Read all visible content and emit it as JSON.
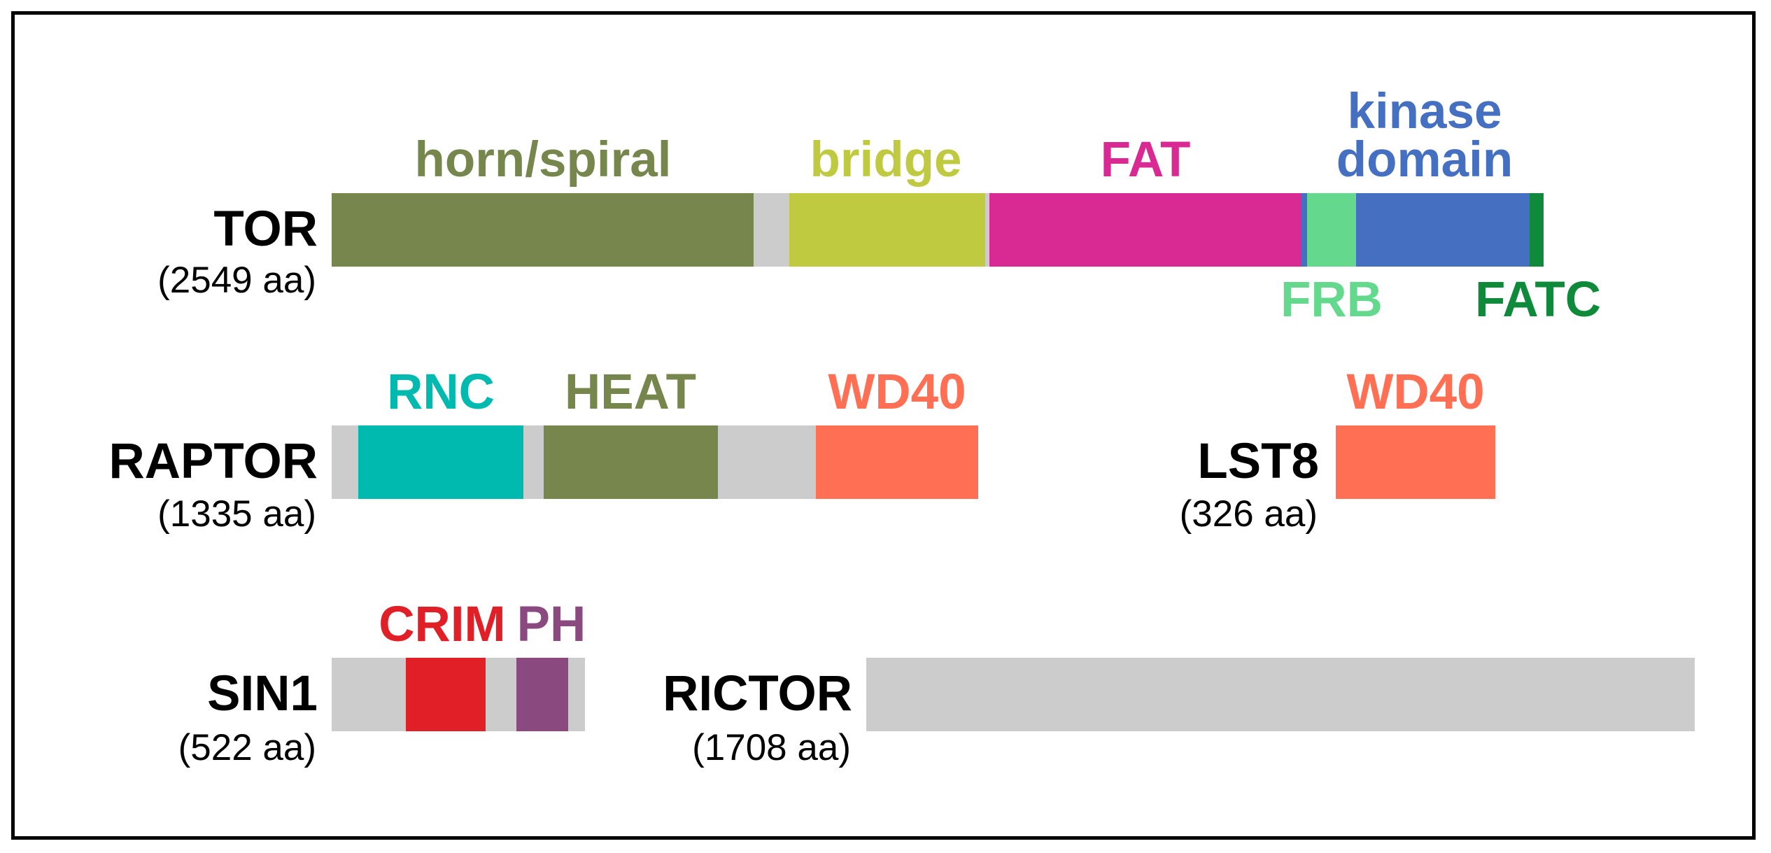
{
  "colors": {
    "backbone": "#CCCCCC",
    "olive": "#77864D",
    "lime": "#BFCA41",
    "magenta": "#D92A93",
    "blue": "#4570C2",
    "mint": "#64D98D",
    "dark_green": "#0E8A3A",
    "teal": "#00BAB0",
    "salmon": "#FF6F53",
    "red": "#E02026",
    "purple": "#8A4A7F"
  },
  "proteins": {
    "tor": {
      "name": "TOR",
      "length": "(2549 aa)",
      "domains": {
        "horn": {
          "label": "horn/spiral",
          "color": "#77864D"
        },
        "bridge": {
          "label": "bridge",
          "color": "#BFCA41"
        },
        "fat": {
          "label": "FAT",
          "color": "#D92A93"
        },
        "frb": {
          "label": "FRB",
          "color": "#64D98D"
        },
        "kinase": {
          "label_line1": "kinase",
          "label_line2": "domain",
          "color": "#4570C2"
        },
        "fatc": {
          "label": "FATC",
          "color": "#0E8A3A"
        }
      }
    },
    "raptor": {
      "name": "RAPTOR",
      "length": "(1335 aa)",
      "domains": {
        "rnc": {
          "label": "RNC",
          "color": "#00BAB0"
        },
        "heat": {
          "label": "HEAT",
          "color": "#77864D"
        },
        "wd40": {
          "label": "WD40",
          "color": "#FF6F53"
        }
      }
    },
    "lst8": {
      "name": "LST8",
      "length": "(326 aa)",
      "domains": {
        "wd40": {
          "label": "WD40",
          "color": "#FF6F53"
        }
      }
    },
    "sin1": {
      "name": "SIN1",
      "length": "(522 aa)",
      "domains": {
        "crim": {
          "label": "CRIM",
          "color": "#E02026"
        },
        "ph": {
          "label": "PH",
          "color": "#8A4A7F"
        }
      }
    },
    "rictor": {
      "name": "RICTOR",
      "length": "(1708 aa)"
    }
  }
}
